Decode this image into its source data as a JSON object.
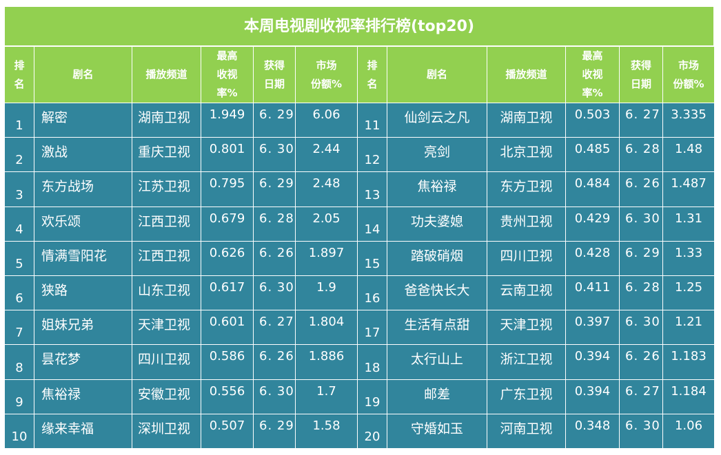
{
  "title": "本周电视剧收视率排行榜(top20)",
  "headers": {
    "rank": [
      "排",
      "名"
    ],
    "name": "剧名",
    "channel": "播放频道",
    "rating": [
      "最高",
      "收视",
      "率%"
    ],
    "date": [
      "获得",
      "日期"
    ],
    "share": [
      "市场",
      "份额%"
    ]
  },
  "rows": [
    {
      "left": {
        "rank": "1",
        "name": "解密",
        "channel": "湖南卫视",
        "rating": "1.949",
        "date": "6. 29",
        "share": "6.06"
      },
      "right": {
        "rank": "11",
        "name": "仙剑云之凡",
        "channel": "湖南卫视",
        "rating": "0.503",
        "date": "6. 27",
        "share": "3.335"
      }
    },
    {
      "left": {
        "rank": "2",
        "name": "激战",
        "channel": "重庆卫视",
        "rating": "0.801",
        "date": "6. 30",
        "share": "2.44"
      },
      "right": {
        "rank": "12",
        "name": "亮剑",
        "channel": "北京卫视",
        "rating": "0.485",
        "date": "6. 28",
        "share": "1.48"
      }
    },
    {
      "left": {
        "rank": "3",
        "name": "东方战场",
        "channel": "江苏卫视",
        "rating": "0.795",
        "date": "6. 29",
        "share": "2.48"
      },
      "right": {
        "rank": "13",
        "name": "焦裕禄",
        "channel": "东方卫视",
        "rating": "0.484",
        "date": "6. 26",
        "share": "1.487"
      }
    },
    {
      "left": {
        "rank": "4",
        "name": "欢乐颂",
        "channel": "江西卫视",
        "rating": "0.679",
        "date": "6. 28",
        "share": "2.05"
      },
      "right": {
        "rank": "14",
        "name": "功夫婆媳",
        "channel": "贵州卫视",
        "rating": "0.429",
        "date": "6. 30",
        "share": "1.31"
      }
    },
    {
      "left": {
        "rank": "5",
        "name": "情满雪阳花",
        "channel": "江西卫视",
        "rating": "0.626",
        "date": "6. 26",
        "share": "1.897"
      },
      "right": {
        "rank": "15",
        "name": "踏破硝烟",
        "channel": "四川卫视",
        "rating": "0.428",
        "date": "6. 29",
        "share": "1.33"
      }
    },
    {
      "left": {
        "rank": "6",
        "name": "狭路",
        "channel": "山东卫视",
        "rating": "0.617",
        "date": "6. 30",
        "share": "1.9"
      },
      "right": {
        "rank": "16",
        "name": "爸爸快长大",
        "channel": "云南卫视",
        "rating": "0.411",
        "date": "6. 28",
        "share": "1.25"
      }
    },
    {
      "left": {
        "rank": "7",
        "name": "姐妹兄弟",
        "channel": "天津卫视",
        "rating": "0.601",
        "date": "6. 27",
        "share": "1.804"
      },
      "right": {
        "rank": "17",
        "name": "生活有点甜",
        "channel": "天津卫视",
        "rating": "0.397",
        "date": "6. 30",
        "share": "1.21"
      }
    },
    {
      "left": {
        "rank": "8",
        "name": "昙花梦",
        "channel": "四川卫视",
        "rating": "0.586",
        "date": "6. 26",
        "share": "1.886"
      },
      "right": {
        "rank": "18",
        "name": "太行山上",
        "channel": "浙江卫视",
        "rating": "0.394",
        "date": "6. 26",
        "share": "1.183"
      }
    },
    {
      "left": {
        "rank": "9",
        "name": "焦裕禄",
        "channel": "安徽卫视",
        "rating": "0.556",
        "date": "6. 30",
        "share": "1.7"
      },
      "right": {
        "rank": "19",
        "name": "邮差",
        "channel": "广东卫视",
        "rating": "0.394",
        "date": "6. 27",
        "share": "1.184"
      }
    },
    {
      "left": {
        "rank": "10",
        "name": "缘来幸福",
        "channel": "深圳卫视",
        "rating": "0.507",
        "date": "6. 29",
        "share": "1.58"
      },
      "right": {
        "rank": "20",
        "name": "守婚如玉",
        "channel": "河南卫视",
        "rating": "0.348",
        "date": "6. 30",
        "share": "1.06"
      }
    }
  ],
  "colors": {
    "header": "#92d050",
    "body": "#31859c",
    "text": "#ffffff"
  }
}
